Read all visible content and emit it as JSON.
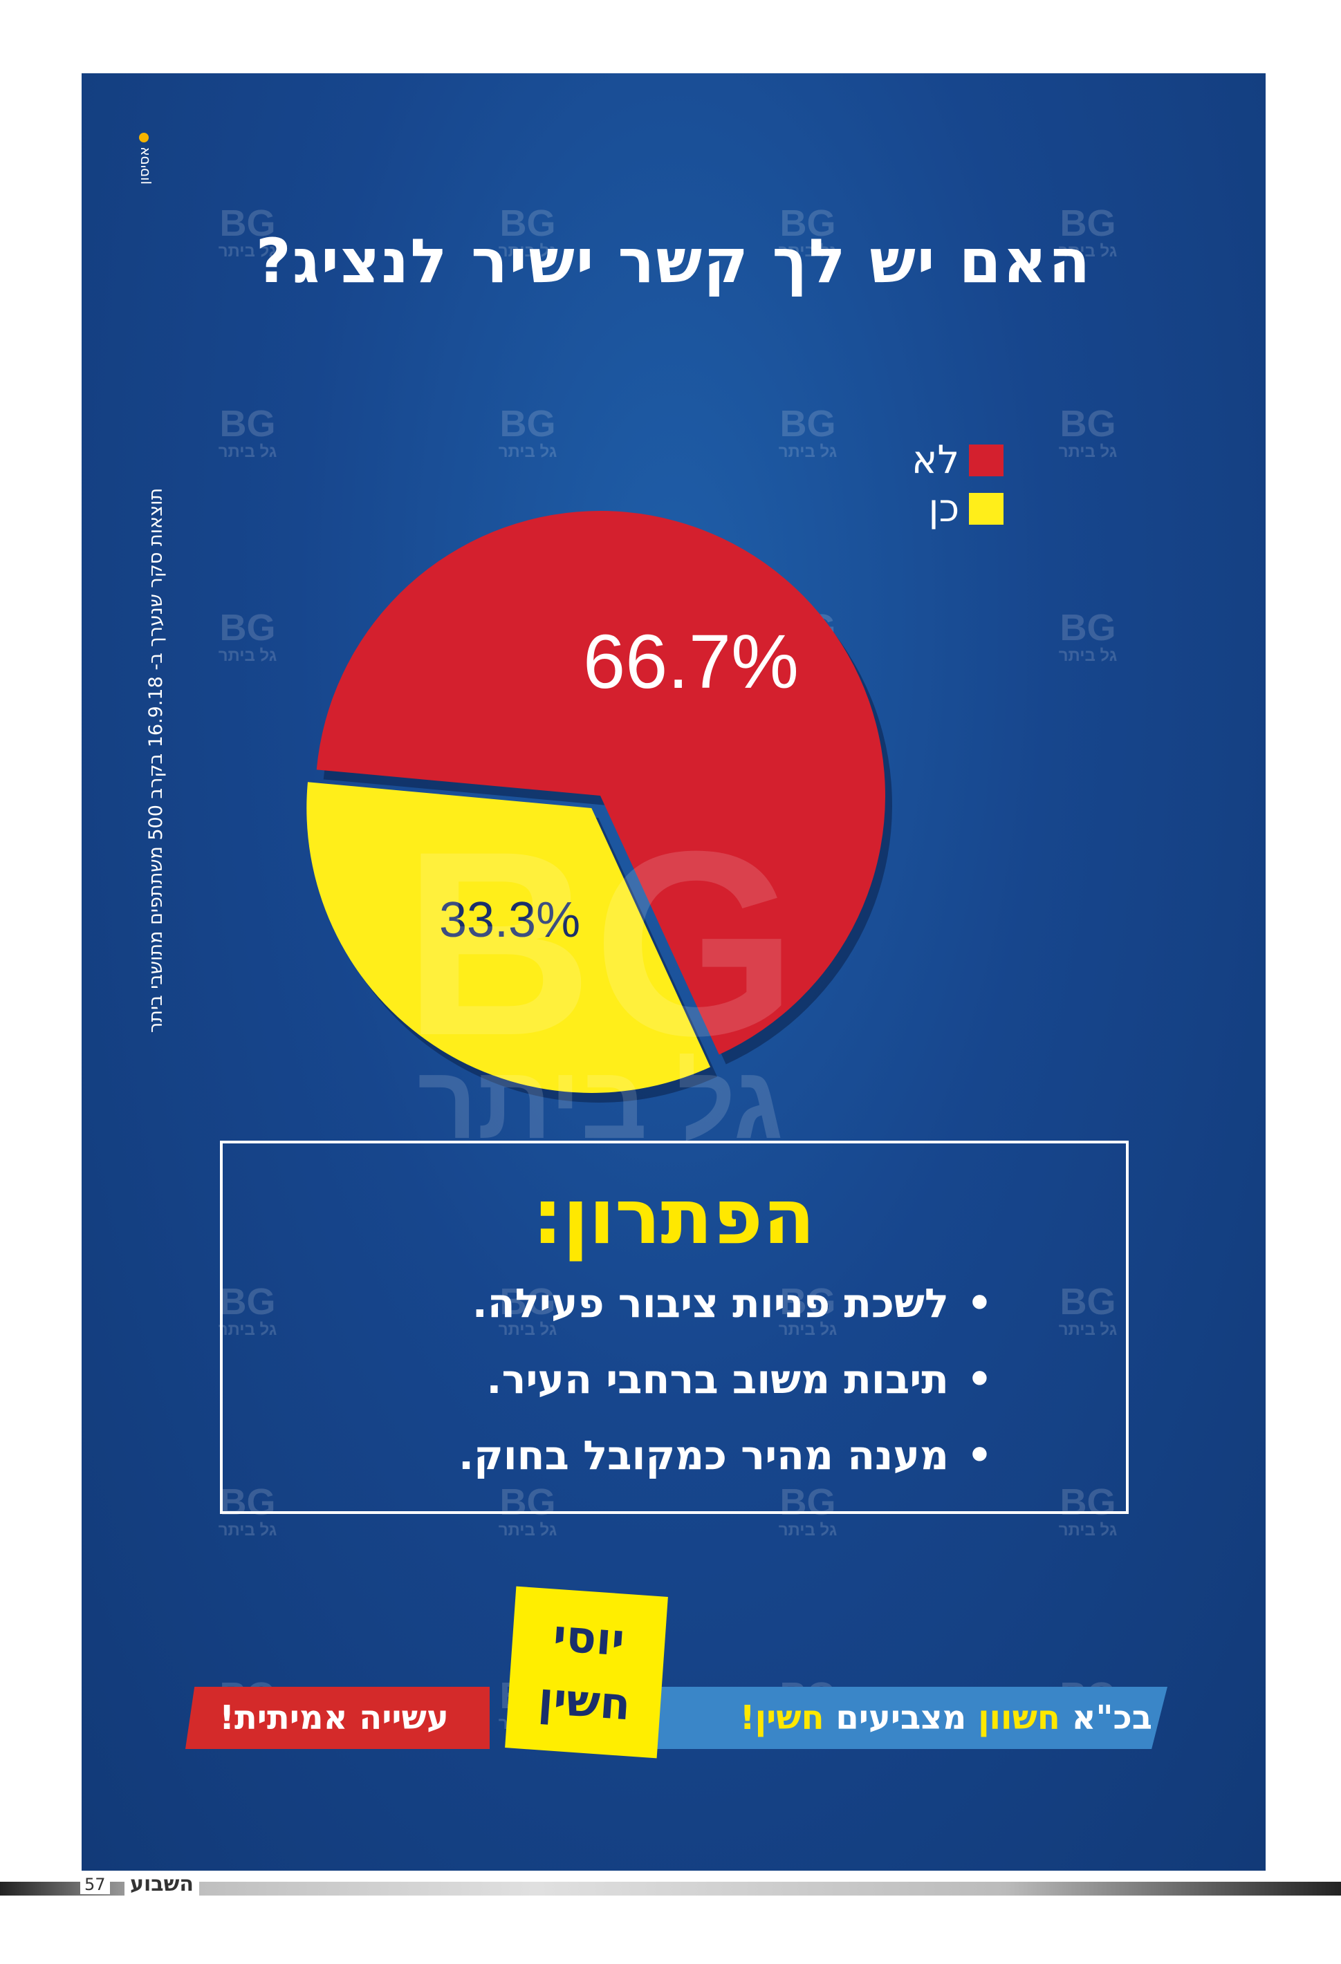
{
  "headline": "האם יש לך קשר ישיר לנציג?",
  "photo_credit": "אסיסון",
  "survey_note": "תוצאות סקר שנערך ב- 16.9.18 בקרב 500 משתתפים מתושבי ביתר",
  "watermark": {
    "small_top": "BG",
    "small_bottom": "גל ביתר",
    "large_top": "BG",
    "large_bottom": "גל ביתר"
  },
  "chart_data": {
    "type": "pie",
    "slices": [
      {
        "label": "לא",
        "value": 66.7,
        "display": "66.7%",
        "color": "#d4202e"
      },
      {
        "label": "כן",
        "value": 33.3,
        "display": "33.3%",
        "color": "#ffee1a"
      }
    ],
    "legend": [
      {
        "label": "לא",
        "color": "#d4202e"
      },
      {
        "label": "כן",
        "color": "#ffee1a"
      }
    ],
    "legend_position": "top-right",
    "exploded_slice": "כן",
    "text_colors": {
      "לא": "#ffffff",
      "כן": "#1a2f6b"
    }
  },
  "solution": {
    "title": "הפתרון:",
    "items": [
      "לשכת פניות ציבור פעילה.",
      "תיבות משוב ברחבי העיר.",
      "מענה מהיר כמקובל בחוק."
    ]
  },
  "banner": {
    "blue_prefix": "בכ\"א ",
    "blue_highlight": "חשוון",
    "blue_middle": " מצביעים ",
    "blue_highlight2": "חשין!",
    "red_text": "עשייה אמיתית!",
    "candidate_first": "יוסי",
    "candidate_last": "חשין"
  },
  "footer": {
    "page_number": "57",
    "magazine": "השבוע"
  },
  "colors": {
    "background": "#17468d",
    "accent_yellow": "#ffe800",
    "accent_red": "#d42a2a",
    "accent_blue": "#3a86c8"
  }
}
